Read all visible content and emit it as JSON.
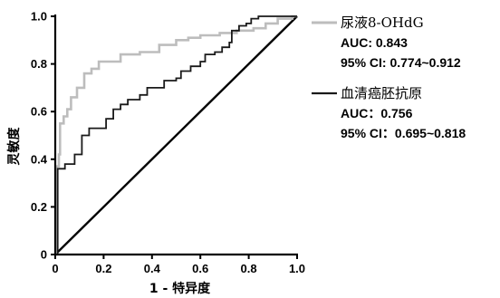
{
  "chart_data": {
    "type": "line",
    "title": "",
    "xlabel": "1 - 特异度",
    "ylabel": "灵敏度",
    "xlim": [
      0,
      1
    ],
    "ylim": [
      0,
      1
    ],
    "x_ticks": [
      "0",
      "0.2",
      "0.4",
      "0.6",
      "0.8",
      "1.0"
    ],
    "y_ticks": [
      "0",
      "0.2",
      "0.4",
      "0.6",
      "0.8",
      "1.0"
    ],
    "grid": false,
    "legend_position": "right",
    "series": [
      {
        "name": "尿液8-OHdG",
        "auc_label": "AUC: 0.843",
        "ci_label": "95% CI: 0.774~0.912",
        "color": "#bdbdbd",
        "points": [
          [
            0,
            0
          ],
          [
            0.005,
            0.37
          ],
          [
            0.015,
            0.42
          ],
          [
            0.02,
            0.55
          ],
          [
            0.035,
            0.58
          ],
          [
            0.05,
            0.61
          ],
          [
            0.065,
            0.66
          ],
          [
            0.09,
            0.7
          ],
          [
            0.12,
            0.76
          ],
          [
            0.15,
            0.78
          ],
          [
            0.18,
            0.81
          ],
          [
            0.25,
            0.81
          ],
          [
            0.27,
            0.84
          ],
          [
            0.35,
            0.85
          ],
          [
            0.43,
            0.88
          ],
          [
            0.5,
            0.9
          ],
          [
            0.55,
            0.91
          ],
          [
            0.6,
            0.92
          ],
          [
            0.68,
            0.93
          ],
          [
            0.75,
            0.94
          ],
          [
            0.82,
            0.95
          ],
          [
            0.87,
            0.97
          ],
          [
            0.92,
            0.99
          ],
          [
            0.98,
            1.0
          ],
          [
            1.0,
            1.0
          ]
        ]
      },
      {
        "name": "血清癌胚抗原",
        "auc_label": "AUC：0.756",
        "ci_label": "95% CI：0.695~0.818",
        "color": "#1a1a1a",
        "points": [
          [
            0,
            0
          ],
          [
            0.01,
            0.36
          ],
          [
            0.03,
            0.36
          ],
          [
            0.04,
            0.38
          ],
          [
            0.07,
            0.38
          ],
          [
            0.08,
            0.42
          ],
          [
            0.11,
            0.45
          ],
          [
            0.11,
            0.5
          ],
          [
            0.13,
            0.5
          ],
          [
            0.14,
            0.53
          ],
          [
            0.2,
            0.53
          ],
          [
            0.21,
            0.57
          ],
          [
            0.23,
            0.57
          ],
          [
            0.24,
            0.61
          ],
          [
            0.27,
            0.63
          ],
          [
            0.3,
            0.65
          ],
          [
            0.32,
            0.65
          ],
          [
            0.35,
            0.67
          ],
          [
            0.38,
            0.7
          ],
          [
            0.42,
            0.7
          ],
          [
            0.45,
            0.73
          ],
          [
            0.5,
            0.74
          ],
          [
            0.52,
            0.77
          ],
          [
            0.56,
            0.79
          ],
          [
            0.6,
            0.81
          ],
          [
            0.62,
            0.84
          ],
          [
            0.66,
            0.85
          ],
          [
            0.69,
            0.87
          ],
          [
            0.72,
            0.89
          ],
          [
            0.73,
            0.94
          ],
          [
            0.76,
            0.96
          ],
          [
            0.79,
            0.97
          ],
          [
            0.81,
            0.99
          ],
          [
            0.84,
            1.0
          ],
          [
            1.0,
            1.0
          ]
        ]
      }
    ],
    "reference_line": {
      "points": [
        [
          0,
          0
        ],
        [
          1,
          1
        ]
      ],
      "color": "#000000"
    }
  }
}
